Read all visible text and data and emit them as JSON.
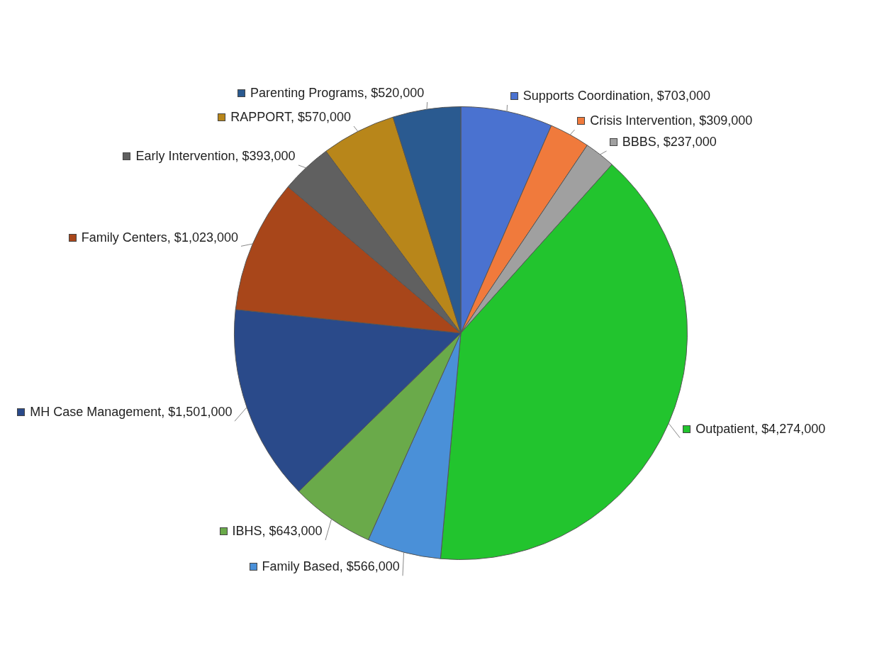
{
  "chart_data": {
    "type": "pie",
    "categories": [
      "Supports Coordination",
      "Crisis Intervention",
      "BBBS",
      "Outpatient",
      "Family Based",
      "IBHS",
      "MH Case Management",
      "Family Centers",
      "Early Intervention",
      "RAPPORT",
      "Parenting Programs"
    ],
    "values": [
      703000,
      309000,
      237000,
      4274000,
      566000,
      643000,
      1501000,
      1023000,
      393000,
      570000,
      520000
    ],
    "value_labels": [
      "$703,000",
      "$309,000",
      "$237,000",
      "$4,274,000",
      "$566,000",
      "$643,000",
      "$1,501,000",
      "$1,023,000",
      "$393,000",
      "$570,000",
      "$520,000"
    ],
    "colors": [
      "#4a72d0",
      "#f07a3c",
      "#a0a0a0",
      "#22c42e",
      "#4a90d8",
      "#6aaa4a",
      "#2a4a8a",
      "#a8461a",
      "#606060",
      "#b8861a",
      "#2a5a90"
    ],
    "legend": "left"
  }
}
